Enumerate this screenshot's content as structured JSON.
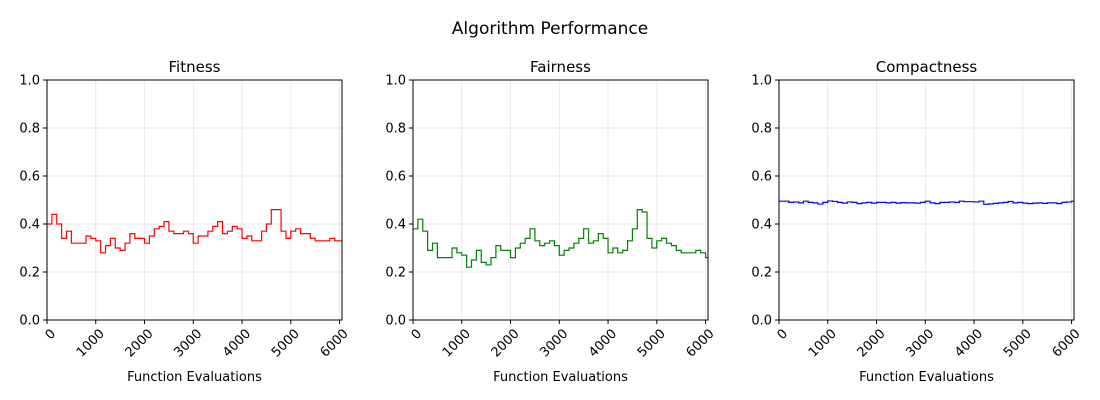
{
  "figure": {
    "title": "Algorithm Performance"
  },
  "chart_data": [
    {
      "type": "line",
      "title": "Fitness",
      "xlabel": "Function Evaluations",
      "ylabel": "",
      "xlim": [
        0,
        6050
      ],
      "ylim": [
        0,
        1
      ],
      "xticks": [
        "0",
        "1000",
        "2000",
        "3000",
        "4000",
        "5000",
        "6000"
      ],
      "yticks": [
        "0.0",
        "0.2",
        "0.4",
        "0.6",
        "0.8",
        "1.0"
      ],
      "grid": true,
      "step": true,
      "series": [
        {
          "color": "#ff0000",
          "x": [
            0,
            100,
            200,
            300,
            400,
            500,
            600,
            700,
            800,
            900,
            1000,
            1100,
            1200,
            1300,
            1400,
            1500,
            1600,
            1700,
            1800,
            1900,
            2000,
            2100,
            2200,
            2300,
            2400,
            2500,
            2600,
            2700,
            2800,
            2900,
            3000,
            3100,
            3200,
            3300,
            3400,
            3500,
            3600,
            3700,
            3800,
            3900,
            4000,
            4100,
            4200,
            4300,
            4400,
            4500,
            4600,
            4700,
            4800,
            4900,
            5000,
            5100,
            5200,
            5300,
            5400,
            5500,
            5600,
            5700,
            5800,
            5900,
            6000
          ],
          "y": [
            0.4,
            0.44,
            0.4,
            0.34,
            0.37,
            0.32,
            0.32,
            0.32,
            0.35,
            0.34,
            0.33,
            0.28,
            0.31,
            0.34,
            0.3,
            0.29,
            0.32,
            0.36,
            0.34,
            0.34,
            0.32,
            0.35,
            0.38,
            0.39,
            0.41,
            0.37,
            0.36,
            0.36,
            0.37,
            0.36,
            0.32,
            0.35,
            0.35,
            0.37,
            0.39,
            0.41,
            0.36,
            0.37,
            0.39,
            0.38,
            0.34,
            0.35,
            0.33,
            0.33,
            0.37,
            0.4,
            0.46,
            0.46,
            0.37,
            0.34,
            0.37,
            0.38,
            0.36,
            0.36,
            0.34,
            0.33,
            0.33,
            0.33,
            0.34,
            0.33,
            0.33
          ]
        }
      ]
    },
    {
      "type": "line",
      "title": "Fairness",
      "xlabel": "Function Evaluations",
      "ylabel": "",
      "xlim": [
        0,
        6050
      ],
      "ylim": [
        0,
        1
      ],
      "xticks": [
        "0",
        "1000",
        "2000",
        "3000",
        "4000",
        "5000",
        "6000"
      ],
      "yticks": [
        "0.0",
        "0.2",
        "0.4",
        "0.6",
        "0.8",
        "1.0"
      ],
      "grid": true,
      "step": true,
      "series": [
        {
          "color": "#008000",
          "x": [
            0,
            100,
            200,
            300,
            400,
            500,
            600,
            700,
            800,
            900,
            1000,
            1100,
            1200,
            1300,
            1400,
            1500,
            1600,
            1700,
            1800,
            1900,
            2000,
            2100,
            2200,
            2300,
            2400,
            2500,
            2600,
            2700,
            2800,
            2900,
            3000,
            3100,
            3200,
            3300,
            3400,
            3500,
            3600,
            3700,
            3800,
            3900,
            4000,
            4100,
            4200,
            4300,
            4400,
            4500,
            4600,
            4700,
            4800,
            4900,
            5000,
            5100,
            5200,
            5300,
            5400,
            5500,
            5600,
            5700,
            5800,
            5900,
            6000
          ],
          "y": [
            0.38,
            0.42,
            0.37,
            0.29,
            0.32,
            0.26,
            0.26,
            0.26,
            0.3,
            0.28,
            0.27,
            0.22,
            0.25,
            0.29,
            0.24,
            0.23,
            0.26,
            0.31,
            0.29,
            0.29,
            0.26,
            0.3,
            0.32,
            0.34,
            0.38,
            0.33,
            0.31,
            0.32,
            0.33,
            0.31,
            0.27,
            0.29,
            0.3,
            0.32,
            0.34,
            0.38,
            0.32,
            0.33,
            0.36,
            0.34,
            0.28,
            0.3,
            0.28,
            0.29,
            0.33,
            0.38,
            0.46,
            0.45,
            0.34,
            0.3,
            0.33,
            0.34,
            0.32,
            0.31,
            0.29,
            0.28,
            0.28,
            0.28,
            0.29,
            0.28,
            0.26
          ]
        }
      ]
    },
    {
      "type": "line",
      "title": "Compactness",
      "xlabel": "Function Evaluations",
      "ylabel": "",
      "xlim": [
        0,
        6050
      ],
      "ylim": [
        0,
        1
      ],
      "xticks": [
        "0",
        "1000",
        "2000",
        "3000",
        "4000",
        "5000",
        "6000"
      ],
      "yticks": [
        "0.0",
        "0.2",
        "0.4",
        "0.6",
        "0.8",
        "1.0"
      ],
      "grid": true,
      "step": true,
      "series": [
        {
          "color": "#0000ff",
          "x": [
            0,
            100,
            200,
            300,
            400,
            500,
            600,
            700,
            800,
            900,
            1000,
            1100,
            1200,
            1300,
            1400,
            1500,
            1600,
            1700,
            1800,
            1900,
            2000,
            2100,
            2200,
            2300,
            2400,
            2500,
            2600,
            2700,
            2800,
            2900,
            3000,
            3100,
            3200,
            3300,
            3400,
            3500,
            3600,
            3700,
            3800,
            3900,
            4000,
            4100,
            4200,
            4300,
            4400,
            4500,
            4600,
            4700,
            4800,
            4900,
            5000,
            5100,
            5200,
            5300,
            5400,
            5500,
            5600,
            5700,
            5800,
            5900,
            6000
          ],
          "y": [
            0.495,
            0.495,
            0.49,
            0.492,
            0.488,
            0.495,
            0.49,
            0.488,
            0.483,
            0.49,
            0.496,
            0.494,
            0.49,
            0.487,
            0.492,
            0.49,
            0.485,
            0.488,
            0.49,
            0.487,
            0.49,
            0.49,
            0.488,
            0.49,
            0.487,
            0.489,
            0.488,
            0.488,
            0.487,
            0.49,
            0.495,
            0.488,
            0.485,
            0.49,
            0.49,
            0.492,
            0.49,
            0.495,
            0.493,
            0.493,
            0.492,
            0.495,
            0.482,
            0.484,
            0.486,
            0.488,
            0.49,
            0.494,
            0.488,
            0.49,
            0.487,
            0.485,
            0.487,
            0.488,
            0.486,
            0.488,
            0.488,
            0.485,
            0.49,
            0.492,
            0.495
          ]
        }
      ]
    }
  ]
}
